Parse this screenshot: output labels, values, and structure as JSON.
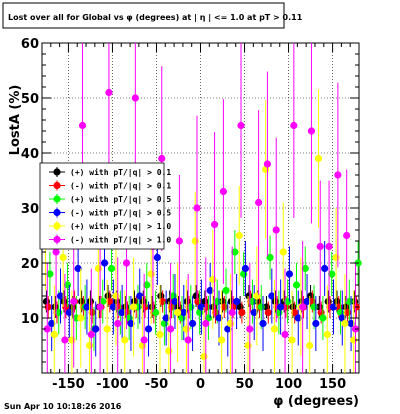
{
  "title": "Lost over all for Global vs φ (degrees) at | η | <= 1.0 at pT > 0.11",
  "footer_date": "Sun Apr 10 10:18:26 2016",
  "chart_data": {
    "type": "scatter",
    "title": "Lost over all for Global vs φ (degrees) at | η | <= 1.0 at pT > 0.11",
    "xlabel": "φ (degrees)",
    "ylabel": "LostA (%)",
    "xlim": [
      -180,
      180
    ],
    "ylim": [
      0,
      60
    ],
    "x_ticks": [
      -150,
      -100,
      -50,
      0,
      50,
      100,
      150
    ],
    "y_ticks": [
      0,
      10,
      20,
      30,
      40,
      50,
      60
    ],
    "grid": true,
    "legend_position": "left-middle",
    "legend": [
      {
        "label": "(+) with pT/|q| > 0.1",
        "color": "#000000"
      },
      {
        "label": "(-) with pT/|q| > 0.1",
        "color": "#ff0000"
      },
      {
        "label": "(+) with pT/|q| > 0.5",
        "color": "#00ff00"
      },
      {
        "label": "(-) with pT/|q| > 0.5",
        "color": "#0000ff"
      },
      {
        "label": "(+) with pT/|q| > 1.0",
        "color": "#ffff00"
      },
      {
        "label": "(-) with pT/|q| > 1.0",
        "color": "#ff00ff"
      }
    ],
    "series": [
      {
        "name": "(+) with pT/|q| > 0.1",
        "color": "#000000",
        "x": [
          -175,
          -165,
          -155,
          -145,
          -135,
          -125,
          -115,
          -105,
          -95,
          -85,
          -75,
          -65,
          -55,
          -45,
          -35,
          -25,
          -15,
          -5,
          5,
          15,
          25,
          35,
          45,
          55,
          65,
          75,
          85,
          95,
          105,
          115,
          125,
          135,
          145,
          155,
          165,
          175
        ],
        "y": [
          13,
          12,
          13,
          12,
          13,
          13,
          12,
          14,
          13,
          12,
          13,
          13,
          12,
          14,
          13,
          12,
          13,
          14,
          13,
          12,
          13,
          13,
          12,
          14,
          13,
          12,
          13,
          13,
          12,
          13,
          14,
          12,
          13,
          13,
          12,
          13
        ]
      },
      {
        "name": "(-) with pT/|q| > 0.1",
        "color": "#ff0000",
        "x": [
          -173,
          -163,
          -153,
          -143,
          -133,
          -123,
          -113,
          -103,
          -93,
          -83,
          -73,
          -63,
          -53,
          -43,
          -33,
          -23,
          -13,
          -3,
          7,
          17,
          27,
          37,
          47,
          57,
          67,
          77,
          87,
          97,
          107,
          117,
          127,
          137,
          147,
          157,
          167,
          177
        ],
        "y": [
          12,
          11,
          12,
          13,
          12,
          11,
          12,
          13,
          12,
          11,
          12,
          12,
          11,
          13,
          12,
          11,
          12,
          13,
          12,
          11,
          12,
          12,
          11,
          13,
          12,
          11,
          12,
          12,
          11,
          12,
          13,
          11,
          12,
          12,
          11,
          12
        ]
      },
      {
        "name": "(+) with pT/|q| > 0.5",
        "color": "#00ff00",
        "x": [
          -171,
          -161,
          -151,
          -141,
          -131,
          -121,
          -111,
          -101,
          -91,
          -81,
          -71,
          -61,
          -51,
          -41,
          -31,
          -21,
          -11,
          -1,
          9,
          19,
          29,
          39,
          49,
          59,
          69,
          79,
          89,
          99,
          109,
          119,
          129,
          139,
          149,
          159,
          169,
          179
        ],
        "y": [
          18,
          11,
          16,
          10,
          12,
          8,
          13,
          19,
          11,
          10,
          12,
          16,
          11,
          9,
          14,
          10,
          12,
          11,
          10,
          13,
          15,
          22,
          18,
          13,
          12,
          21,
          11,
          13,
          16,
          19,
          12,
          10,
          18,
          11,
          13,
          20
        ]
      },
      {
        "name": "(-) with pT/|q| > 0.5",
        "color": "#0000ff",
        "x": [
          -169,
          -159,
          -149,
          -139,
          -129,
          -119,
          -109,
          -99,
          -89,
          -79,
          -69,
          -59,
          -49,
          -39,
          -29,
          -19,
          -9,
          1,
          11,
          21,
          31,
          41,
          51,
          61,
          71,
          81,
          91,
          101,
          111,
          121,
          131,
          141,
          151,
          161,
          171
        ],
        "y": [
          9,
          14,
          11,
          19,
          12,
          8,
          20,
          12,
          11,
          9,
          14,
          8,
          21,
          10,
          13,
          11,
          9,
          12,
          15,
          10,
          8,
          13,
          19,
          11,
          9,
          14,
          12,
          18,
          10,
          13,
          9,
          19,
          12,
          10,
          9
        ]
      },
      {
        "name": "(+) with pT/|q| > 1.0",
        "color": "#ffff00",
        "x": [
          -176,
          -166,
          -156,
          -146,
          -136,
          -126,
          -116,
          -106,
          -96,
          -86,
          -76,
          -66,
          -56,
          -46,
          -36,
          -26,
          -16,
          -6,
          4,
          14,
          24,
          34,
          44,
          54,
          64,
          74,
          84,
          94,
          104,
          114,
          124,
          134,
          144,
          154,
          164,
          174
        ],
        "y": [
          24,
          7,
          21,
          6,
          10,
          5,
          19,
          8,
          14,
          6,
          12,
          5,
          18,
          7,
          4,
          11,
          8,
          24,
          3,
          17,
          6,
          9,
          25,
          5,
          14,
          37,
          8,
          22,
          6,
          12,
          5,
          39,
          7,
          21,
          9,
          6
        ]
      },
      {
        "name": "(-) with pT/|q| > 1.0",
        "color": "#ff00ff",
        "x": [
          -174,
          -164,
          -154,
          -144,
          -134,
          -124,
          -114,
          -104,
          -94,
          -84,
          -74,
          -64,
          -54,
          -44,
          -34,
          -24,
          -14,
          -4,
          6,
          16,
          26,
          36,
          46,
          56,
          66,
          76,
          86,
          96,
          106,
          116,
          126,
          136,
          146,
          156,
          166,
          176
        ],
        "y": [
          8,
          22,
          6,
          13,
          45,
          7,
          12,
          51,
          9,
          20,
          50,
          6,
          23,
          39,
          8,
          24,
          6,
          30,
          9,
          27,
          33,
          11,
          45,
          8,
          31,
          38,
          26,
          7,
          45,
          12,
          44,
          23,
          23,
          36,
          25,
          8
        ]
      }
    ]
  }
}
